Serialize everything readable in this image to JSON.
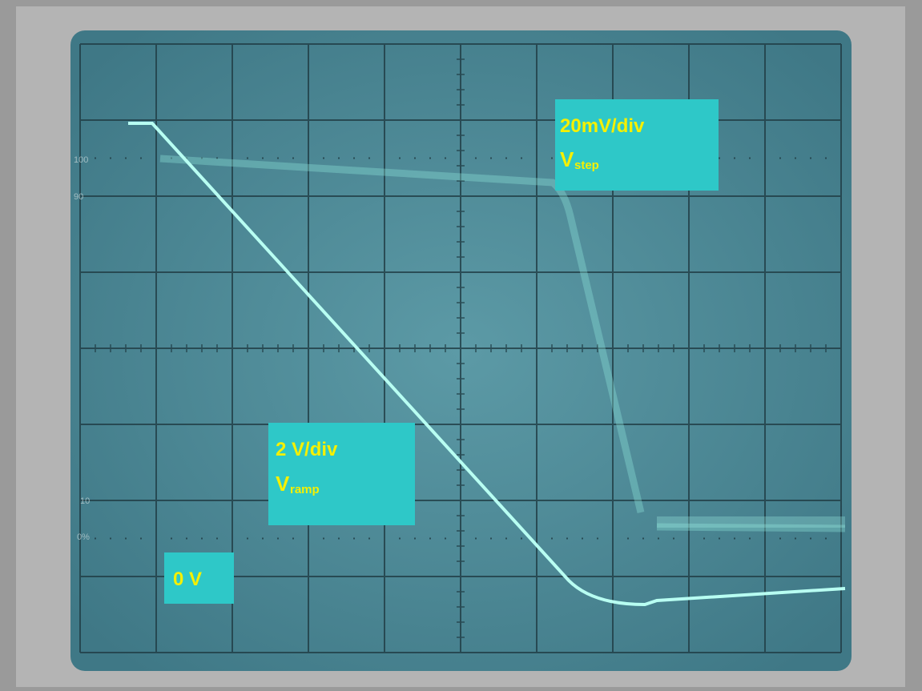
{
  "graticule": [
    "100",
    "90",
    "10",
    "0%"
  ],
  "labels": {
    "step": {
      "scale": "20mV/div",
      "symbol": "V",
      "subscript": "step"
    },
    "ramp": {
      "scale": "2 V/div",
      "symbol": "V",
      "subscript": "ramp"
    },
    "zero": "0 V"
  }
}
